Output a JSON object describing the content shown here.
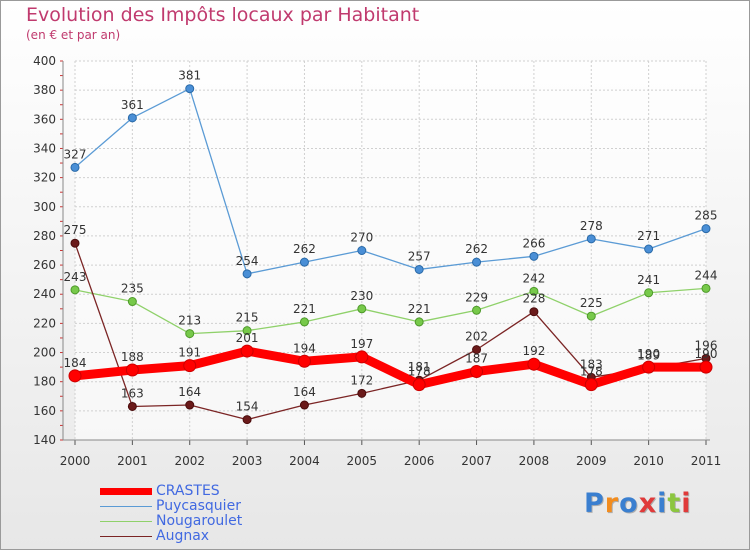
{
  "title": "Evolution des Impôts locaux par Habitant",
  "subtitle": "(en € et par an)",
  "logo_text": "Proxiti",
  "chart_data": {
    "type": "line",
    "x": [
      "2000",
      "2001",
      "2002",
      "2003",
      "2004",
      "2005",
      "2006",
      "2007",
      "2008",
      "2009",
      "2010",
      "2011"
    ],
    "ylim": [
      140,
      400
    ],
    "yticks": [
      140,
      160,
      180,
      200,
      220,
      240,
      260,
      280,
      300,
      320,
      340,
      360,
      380,
      400
    ],
    "grid": true,
    "legend_placement": "bottom-left",
    "series": [
      {
        "name": "CRASTES",
        "color": "#ff0000",
        "values": [
          184,
          188,
          191,
          201,
          194,
          197,
          178,
          187,
          192,
          178,
          190,
          190
        ]
      },
      {
        "name": "Puycasquier",
        "color": "#5b9bd5",
        "values": [
          327,
          361,
          381,
          254,
          262,
          270,
          257,
          262,
          266,
          278,
          271,
          285
        ]
      },
      {
        "name": "Nougaroulet",
        "color": "#8fd16a",
        "values": [
          243,
          235,
          213,
          215,
          221,
          230,
          221,
          229,
          242,
          225,
          241,
          244
        ]
      },
      {
        "name": "Augnax",
        "color": "#7b2525",
        "values": [
          275,
          163,
          164,
          154,
          164,
          172,
          181,
          202,
          228,
          183,
          189,
          196
        ]
      }
    ],
    "data_labels": {
      "CRASTES": [
        "184",
        "188",
        "191",
        "201",
        "194",
        "197",
        "178",
        "187",
        "192",
        "178",
        "190",
        "190"
      ],
      "Puycasquier": [
        "327",
        "361",
        "381",
        "254",
        "262",
        "270",
        "257",
        "262",
        "266",
        "278",
        "271",
        "285"
      ],
      "Nougaroulet": [
        "243",
        "235",
        "213",
        "215",
        "221",
        "230",
        "221",
        "229",
        "242",
        "225",
        "241",
        "244"
      ],
      "Augnax": [
        "275",
        "163",
        "164",
        "154",
        "164",
        "172",
        "181",
        "202",
        "228",
        "183",
        "189",
        "196"
      ]
    }
  }
}
